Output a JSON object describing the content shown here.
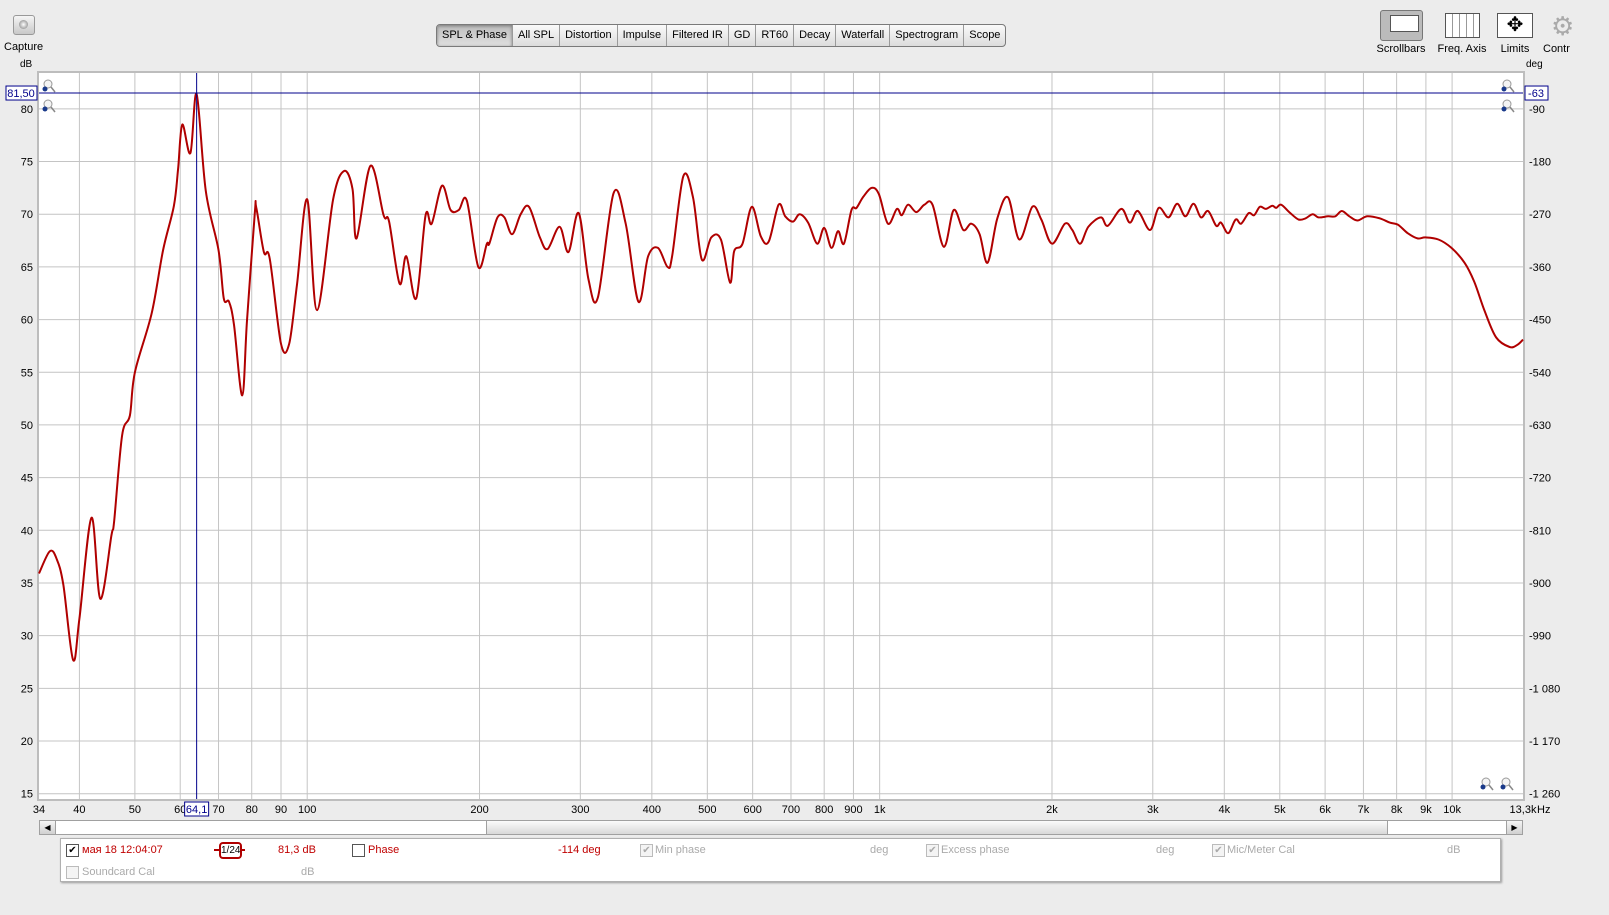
{
  "toolbar": {
    "capture_label": "Capture",
    "tabs": [
      "SPL & Phase",
      "All SPL",
      "Distortion",
      "Impulse",
      "Filtered IR",
      "GD",
      "RT60",
      "Decay",
      "Waterfall",
      "Spectrogram",
      "Scope"
    ],
    "active_tab": "SPL & Phase",
    "right_buttons": [
      {
        "label": "Scrollbars",
        "icon": "scrollbars-icon"
      },
      {
        "label": "Freq. Axis",
        "icon": "freq-axis-icon"
      },
      {
        "label": "Limits",
        "icon": "limits-icon"
      },
      {
        "label": "Contr",
        "icon": "gear-icon"
      }
    ]
  },
  "cursor": {
    "level": "81,50",
    "phase": "-63",
    "freq": "64,1"
  },
  "legend": {
    "measurement": "мая 18 12:04:07",
    "smoothing": "1/24",
    "spl_value": "81,3 dB",
    "phase_label": "Phase",
    "phase_value": "-114 deg",
    "min_phase_label": "Min phase",
    "min_phase_unit": "deg",
    "excess_phase_label": "Excess phase",
    "excess_phase_unit": "deg",
    "mic_cal_label": "Mic/Meter Cal",
    "mic_cal_unit": "dB",
    "soundcard_cal_label": "Soundcard Cal",
    "soundcard_cal_unit": "dB"
  },
  "chart_data": {
    "type": "line",
    "xscale": "log",
    "xlim": [
      34,
      13300
    ],
    "ylim": [
      14.5,
      83.4
    ],
    "left_unit": "dB",
    "right_unit": "deg",
    "x_unit": "Hz",
    "grid": true,
    "line_color": "#b00000",
    "cursor_color": "#00008b",
    "x_grid": [
      40,
      50,
      60,
      70,
      80,
      90,
      100,
      200,
      300,
      400,
      500,
      600,
      700,
      800,
      900,
      1000,
      2000,
      3000,
      4000,
      5000,
      6000,
      7000,
      8000,
      9000,
      10000
    ],
    "x_ticks": [
      [
        34,
        "34"
      ],
      [
        40,
        "40"
      ],
      [
        50,
        "50"
      ],
      [
        60,
        "60"
      ],
      [
        70,
        "70"
      ],
      [
        80,
        "80"
      ],
      [
        90,
        "90"
      ],
      [
        100,
        "100"
      ],
      [
        200,
        "200"
      ],
      [
        300,
        "300"
      ],
      [
        400,
        "400"
      ],
      [
        500,
        "500"
      ],
      [
        600,
        "600"
      ],
      [
        700,
        "700"
      ],
      [
        800,
        "800"
      ],
      [
        900,
        "900"
      ],
      [
        1000,
        "1k"
      ],
      [
        2000,
        "2k"
      ],
      [
        3000,
        "3k"
      ],
      [
        4000,
        "4k"
      ],
      [
        5000,
        "5k"
      ],
      [
        6000,
        "6k"
      ],
      [
        7000,
        "7k"
      ],
      [
        8000,
        "8k"
      ],
      [
        9000,
        "9k"
      ],
      [
        10000,
        "10k"
      ],
      [
        13300,
        "13,3k"
      ]
    ],
    "y_ticks": [
      15,
      20,
      25,
      30,
      35,
      40,
      45,
      50,
      55,
      60,
      65,
      70,
      75,
      80
    ],
    "y2_ticks": [
      "-1 260",
      "-1 170",
      "-1 080",
      "-990",
      "-900",
      "-810",
      "-720",
      "-630",
      "-540",
      "-450",
      "-360",
      "-270",
      "-180",
      "-90"
    ],
    "cursor_x": 64.1,
    "cursor_y": 81.5,
    "series": [
      {
        "points": [
          [
            34,
            35.9
          ],
          [
            35.5,
            38
          ],
          [
            36.5,
            37.3
          ],
          [
            37.5,
            34.8
          ],
          [
            39,
            27.7
          ],
          [
            40,
            31.6
          ],
          [
            42,
            41.2
          ],
          [
            43.5,
            33.5
          ],
          [
            45.5,
            39.5
          ],
          [
            46,
            40.9
          ],
          [
            47.5,
            49
          ],
          [
            49,
            50.9
          ],
          [
            50,
            55
          ],
          [
            53.5,
            60.6
          ],
          [
            56,
            66.6
          ],
          [
            58.5,
            70.8
          ],
          [
            59.5,
            74.3
          ],
          [
            60.5,
            78.5
          ],
          [
            62.5,
            75.8
          ],
          [
            64.1,
            81.4
          ],
          [
            66.5,
            72.2
          ],
          [
            70,
            66.6
          ],
          [
            71.5,
            62
          ],
          [
            73,
            61.7
          ],
          [
            74.5,
            59.5
          ],
          [
            77,
            52.8
          ],
          [
            78.5,
            59.9
          ],
          [
            81,
            70.1
          ],
          [
            81.5,
            70.6
          ],
          [
            84,
            66.4
          ],
          [
            86,
            65.8
          ],
          [
            90,
            57.7
          ],
          [
            93,
            57.7
          ],
          [
            96,
            63.4
          ],
          [
            100,
            71.4
          ],
          [
            104,
            60.9
          ],
          [
            111,
            71.4
          ],
          [
            116,
            74.1
          ],
          [
            120,
            72.4
          ],
          [
            122,
            67.7
          ],
          [
            129,
            74.6
          ],
          [
            136,
            69.9
          ],
          [
            139,
            69.3
          ],
          [
            145,
            63.4
          ],
          [
            149,
            66
          ],
          [
            155,
            62
          ],
          [
            161,
            69.9
          ],
          [
            165,
            69.1
          ],
          [
            172,
            72.7
          ],
          [
            178,
            70.4
          ],
          [
            184,
            70.4
          ],
          [
            190,
            71.3
          ],
          [
            199,
            65
          ],
          [
            206,
            67.2
          ],
          [
            208,
            67.2
          ],
          [
            215,
            69.7
          ],
          [
            221,
            69.7
          ],
          [
            228,
            68.1
          ],
          [
            236,
            70
          ],
          [
            244,
            70.7
          ],
          [
            255,
            67.8
          ],
          [
            263,
            66.7
          ],
          [
            276,
            68.8
          ],
          [
            286,
            66.4
          ],
          [
            298,
            70.1
          ],
          [
            310,
            63.8
          ],
          [
            322,
            62.1
          ],
          [
            343,
            72
          ],
          [
            360,
            69.1
          ],
          [
            379,
            61.7
          ],
          [
            394,
            66
          ],
          [
            410,
            66.8
          ],
          [
            426,
            65
          ],
          [
            434,
            66
          ],
          [
            454,
            73.6
          ],
          [
            472,
            71.6
          ],
          [
            489,
            65.7
          ],
          [
            508,
            67.8
          ],
          [
            528,
            67.6
          ],
          [
            548,
            63.5
          ],
          [
            557,
            66.5
          ],
          [
            576,
            67.2
          ],
          [
            598,
            70.7
          ],
          [
            620,
            67.9
          ],
          [
            640,
            67.4
          ],
          [
            666,
            70.9
          ],
          [
            684,
            69.8
          ],
          [
            706,
            69.3
          ],
          [
            725,
            70
          ],
          [
            750,
            69.2
          ],
          [
            778,
            67.2
          ],
          [
            800,
            68.7
          ],
          [
            824,
            66.8
          ],
          [
            846,
            68.4
          ],
          [
            866,
            67.2
          ],
          [
            893,
            70.4
          ],
          [
            911,
            70.6
          ],
          [
            935,
            71.6
          ],
          [
            968,
            72.5
          ],
          [
            997,
            71.9
          ],
          [
            1034,
            69.1
          ],
          [
            1072,
            70.5
          ],
          [
            1093,
            69.9
          ],
          [
            1121,
            70.9
          ],
          [
            1159,
            70.2
          ],
          [
            1197,
            70.9
          ],
          [
            1237,
            70.9
          ],
          [
            1295,
            66.9
          ],
          [
            1347,
            70.4
          ],
          [
            1400,
            68.5
          ],
          [
            1446,
            69.1
          ],
          [
            1495,
            68.1
          ],
          [
            1544,
            65.4
          ],
          [
            1605,
            69.6
          ],
          [
            1676,
            71.6
          ],
          [
            1754,
            67.6
          ],
          [
            1848,
            70.7
          ],
          [
            1916,
            69.5
          ],
          [
            2000,
            67.2
          ],
          [
            2107,
            69.1
          ],
          [
            2170,
            68.5
          ],
          [
            2240,
            67.2
          ],
          [
            2315,
            68.8
          ],
          [
            2435,
            69.7
          ],
          [
            2503,
            68.9
          ],
          [
            2643,
            70.5
          ],
          [
            2735,
            69.2
          ],
          [
            2826,
            70.3
          ],
          [
            2967,
            68.5
          ],
          [
            3072,
            70.6
          ],
          [
            3196,
            69.7
          ],
          [
            3310,
            71
          ],
          [
            3420,
            69.8
          ],
          [
            3534,
            71
          ],
          [
            3641,
            69.7
          ],
          [
            3748,
            70.3
          ],
          [
            3872,
            68.9
          ],
          [
            3948,
            69.2
          ],
          [
            4063,
            68.2
          ],
          [
            4187,
            69.5
          ],
          [
            4280,
            69.1
          ],
          [
            4413,
            70.1
          ],
          [
            4510,
            69.9
          ],
          [
            4615,
            70.7
          ],
          [
            4727,
            70.5
          ],
          [
            4852,
            70.8
          ],
          [
            4928,
            70.6
          ],
          [
            5027,
            70.9
          ],
          [
            5193,
            70.2
          ],
          [
            5388,
            69.5
          ],
          [
            5543,
            69.6
          ],
          [
            5706,
            70
          ],
          [
            5842,
            69.7
          ],
          [
            6073,
            69.8
          ],
          [
            6250,
            69.8
          ],
          [
            6417,
            70.3
          ],
          [
            6613,
            69.8
          ],
          [
            6832,
            69.4
          ],
          [
            7105,
            69.8
          ],
          [
            7483,
            69.6
          ],
          [
            7783,
            69.2
          ],
          [
            8043,
            69
          ],
          [
            8364,
            68.2
          ],
          [
            8699,
            67.7
          ],
          [
            8985,
            67.8
          ],
          [
            9465,
            67.6
          ],
          [
            9975,
            66.8
          ],
          [
            10510,
            65.4
          ],
          [
            10930,
            63.6
          ],
          [
            11400,
            60.8
          ],
          [
            11940,
            58.3
          ],
          [
            12600,
            57.4
          ],
          [
            13000,
            57.6
          ],
          [
            13300,
            58.1
          ]
        ]
      }
    ]
  }
}
